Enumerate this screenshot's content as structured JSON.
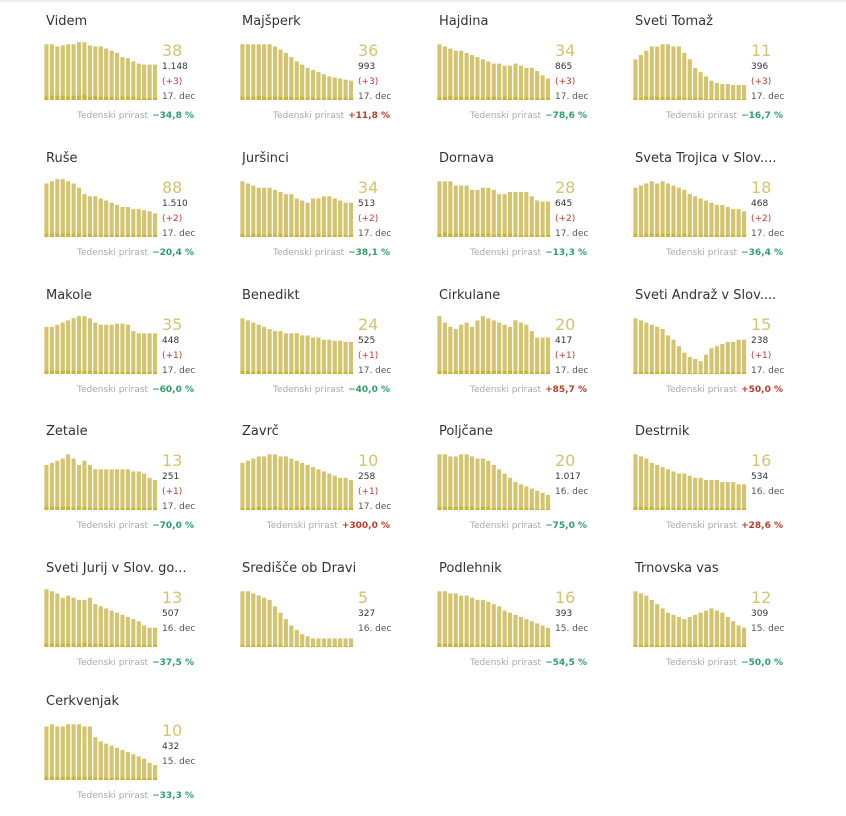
{
  "colors": {
    "bar": "#d4c470",
    "bar_low": "#c7b43a",
    "number": "#d4c470",
    "negative": "#2ea06a",
    "positive": "#c0392b"
  },
  "growth_label": "Tedenski prirast",
  "chart_data": [
    {
      "type": "bar",
      "title": "Videm",
      "active": "38",
      "total": "1.148",
      "delta": "(+3)",
      "date": "17. dec",
      "growth": "−34,8 %",
      "growth_sign": "neg",
      "values": [
        52,
        52,
        50,
        51,
        52,
        52,
        54,
        54,
        51,
        50,
        50,
        48,
        46,
        44,
        40,
        39,
        36,
        34,
        33,
        33,
        33
      ],
      "low": [
        3,
        4,
        4,
        4,
        3,
        4,
        4,
        5,
        3,
        4,
        3,
        3,
        3,
        2,
        3,
        3,
        3,
        2,
        2,
        2,
        2
      ]
    },
    {
      "type": "bar",
      "title": "Majšperk",
      "active": "36",
      "total": "993",
      "delta": "(+3)",
      "date": "17. dec",
      "growth": "+11,8 %",
      "growth_sign": "pos",
      "values": [
        52,
        52,
        52,
        52,
        52,
        52,
        50,
        47,
        44,
        40,
        36,
        33,
        30,
        28,
        26,
        24,
        22,
        21,
        20,
        19,
        18
      ],
      "low": [
        3,
        3,
        3,
        4,
        3,
        3,
        3,
        3,
        3,
        3,
        2,
        3,
        2,
        2,
        2,
        2,
        2,
        2,
        2,
        2,
        2
      ]
    },
    {
      "type": "bar",
      "title": "Hajdina",
      "active": "34",
      "total": "865",
      "delta": "(+3)",
      "date": "17. dec",
      "growth": "−78,6 %",
      "growth_sign": "neg",
      "values": [
        52,
        50,
        48,
        46,
        46,
        44,
        42,
        40,
        38,
        36,
        34,
        34,
        32,
        32,
        34,
        32,
        30,
        30,
        27,
        23,
        20
      ],
      "low": [
        3,
        3,
        4,
        3,
        3,
        3,
        3,
        3,
        2,
        3,
        3,
        2,
        3,
        2,
        3,
        2,
        2,
        2,
        2,
        2,
        2
      ]
    },
    {
      "type": "bar",
      "title": "Sveti Tomaž",
      "active": "11",
      "total": "396",
      "delta": "(+3)",
      "date": "17. dec",
      "growth": "−16,7 %",
      "growth_sign": "neg",
      "values": [
        38,
        42,
        46,
        50,
        50,
        52,
        52,
        50,
        50,
        44,
        38,
        30,
        26,
        22,
        18,
        16,
        15,
        15,
        14,
        14,
        14
      ],
      "low": [
        2,
        2,
        3,
        3,
        3,
        3,
        3,
        2,
        3,
        2,
        2,
        2,
        2,
        1,
        1,
        1,
        1,
        1,
        1,
        1,
        1
      ]
    },
    {
      "type": "bar",
      "title": "Ruše",
      "active": "88",
      "total": "1.510",
      "delta": "(+2)",
      "date": "17. dec",
      "growth": "−20,4 %",
      "growth_sign": "neg",
      "values": [
        50,
        52,
        54,
        54,
        52,
        50,
        46,
        40,
        38,
        38,
        36,
        34,
        32,
        30,
        28,
        28,
        26,
        26,
        25,
        24,
        22
      ],
      "low": [
        3,
        3,
        3,
        3,
        3,
        3,
        3,
        2,
        3,
        2,
        2,
        2,
        2,
        2,
        2,
        2,
        2,
        2,
        2,
        2,
        2
      ]
    },
    {
      "type": "bar",
      "title": "Juršinci",
      "active": "34",
      "total": "513",
      "delta": "(+2)",
      "date": "17. dec",
      "growth": "−38,1 %",
      "growth_sign": "neg",
      "values": [
        52,
        50,
        48,
        46,
        46,
        46,
        44,
        42,
        40,
        40,
        36,
        34,
        32,
        36,
        36,
        38,
        38,
        36,
        34,
        32,
        32
      ],
      "low": [
        3,
        2,
        3,
        3,
        2,
        3,
        2,
        3,
        2,
        2,
        2,
        2,
        2,
        2,
        3,
        2,
        2,
        2,
        2,
        2,
        2
      ]
    },
    {
      "type": "bar",
      "title": "Dornava",
      "active": "28",
      "total": "645",
      "delta": "(+2)",
      "date": "17. dec",
      "growth": "−13,3 %",
      "growth_sign": "neg",
      "values": [
        52,
        52,
        52,
        48,
        48,
        48,
        44,
        44,
        46,
        46,
        44,
        40,
        40,
        42,
        42,
        42,
        42,
        38,
        34,
        33,
        33
      ],
      "low": [
        3,
        4,
        3,
        3,
        3,
        3,
        3,
        3,
        3,
        3,
        2,
        3,
        3,
        3,
        2,
        2,
        2,
        2,
        2,
        2,
        2
      ]
    },
    {
      "type": "bar",
      "title": "Sveta Trojica v Slov....",
      "active": "18",
      "total": "468",
      "delta": "(+2)",
      "date": "17. dec",
      "growth": "−36,4 %",
      "growth_sign": "neg",
      "values": [
        46,
        48,
        50,
        52,
        50,
        52,
        50,
        48,
        46,
        44,
        40,
        38,
        36,
        34,
        32,
        30,
        30,
        28,
        26,
        26,
        24
      ],
      "low": [
        3,
        2,
        3,
        3,
        3,
        3,
        3,
        3,
        2,
        3,
        2,
        2,
        2,
        2,
        2,
        2,
        2,
        2,
        2,
        2,
        2
      ]
    },
    {
      "type": "bar",
      "title": "Makole",
      "active": "35",
      "total": "448",
      "delta": "(+1)",
      "date": "17. dec",
      "growth": "−60,0 %",
      "growth_sign": "neg",
      "values": [
        44,
        44,
        46,
        48,
        50,
        52,
        54,
        54,
        52,
        48,
        46,
        46,
        46,
        47,
        47,
        46,
        40,
        38,
        38,
        38,
        38
      ],
      "low": [
        3,
        3,
        3,
        3,
        3,
        3,
        3,
        3,
        3,
        3,
        2,
        2,
        2,
        2,
        2,
        2,
        2,
        2,
        2,
        2,
        2
      ]
    },
    {
      "type": "bar",
      "title": "Benedikt",
      "active": "24",
      "total": "525",
      "delta": "(+1)",
      "date": "17. dec",
      "growth": "−40,0 %",
      "growth_sign": "neg",
      "values": [
        52,
        50,
        48,
        46,
        44,
        42,
        40,
        40,
        38,
        38,
        38,
        36,
        36,
        34,
        34,
        32,
        32,
        31,
        31,
        30,
        30
      ],
      "low": [
        3,
        3,
        2,
        3,
        2,
        3,
        2,
        2,
        2,
        2,
        3,
        2,
        2,
        2,
        2,
        2,
        2,
        2,
        2,
        2,
        2
      ]
    },
    {
      "type": "bar",
      "title": "Cirkulane",
      "active": "20",
      "total": "417",
      "delta": "(+1)",
      "date": "17. dec",
      "growth": "+85,7 %",
      "growth_sign": "pos",
      "values": [
        54,
        48,
        44,
        42,
        46,
        48,
        44,
        50,
        54,
        52,
        50,
        48,
        46,
        44,
        50,
        48,
        46,
        40,
        34,
        34,
        34
      ],
      "low": [
        3,
        3,
        2,
        3,
        3,
        3,
        3,
        3,
        3,
        3,
        3,
        3,
        3,
        3,
        3,
        3,
        3,
        2,
        2,
        2,
        2
      ]
    },
    {
      "type": "bar",
      "title": "Sveti Andraž v Slov....",
      "active": "15",
      "total": "238",
      "delta": "(+1)",
      "date": "17. dec",
      "growth": "+50,0 %",
      "growth_sign": "pos",
      "values": [
        52,
        50,
        48,
        46,
        44,
        42,
        36,
        32,
        26,
        20,
        16,
        14,
        12,
        18,
        24,
        26,
        28,
        30,
        30,
        32,
        32
      ],
      "low": [
        2,
        2,
        2,
        2,
        2,
        2,
        2,
        2,
        1,
        1,
        1,
        1,
        1,
        1,
        1,
        1,
        2,
        2,
        2,
        2,
        2
      ]
    },
    {
      "type": "bar",
      "title": "Žetale",
      "active": "13",
      "total": "251",
      "delta": "(+1)",
      "date": "17. dec",
      "growth": "−70,0 %",
      "growth_sign": "neg",
      "values": [
        42,
        44,
        46,
        48,
        52,
        48,
        42,
        46,
        42,
        38,
        38,
        38,
        38,
        38,
        38,
        38,
        36,
        36,
        34,
        30,
        28
      ],
      "low": [
        3,
        3,
        3,
        3,
        3,
        2,
        3,
        3,
        2,
        2,
        2,
        2,
        2,
        2,
        2,
        2,
        2,
        2,
        2,
        2,
        2
      ]
    },
    {
      "type": "bar",
      "title": "Zavrč",
      "active": "10",
      "total": "258",
      "delta": "(+1)",
      "date": "17. dec",
      "growth": "+300,0 %",
      "growth_sign": "pos",
      "values": [
        44,
        46,
        48,
        50,
        50,
        52,
        52,
        50,
        50,
        48,
        46,
        44,
        42,
        40,
        38,
        36,
        34,
        32,
        30,
        30,
        28
      ],
      "low": [
        2,
        2,
        2,
        3,
        2,
        2,
        3,
        2,
        2,
        2,
        3,
        2,
        3,
        2,
        2,
        2,
        2,
        2,
        2,
        2,
        2
      ]
    },
    {
      "type": "bar",
      "title": "Poljčane",
      "active": "20",
      "total": "1.017",
      "delta": "",
      "date": "16. dec",
      "growth": "−75,0 %",
      "growth_sign": "neg",
      "values": [
        52,
        52,
        50,
        50,
        52,
        52,
        50,
        48,
        48,
        46,
        42,
        38,
        34,
        30,
        26,
        24,
        22,
        20,
        18,
        16,
        14
      ],
      "low": [
        3,
        3,
        3,
        3,
        3,
        3,
        3,
        2,
        3,
        3,
        2,
        2,
        2,
        2,
        2,
        2,
        2,
        2,
        1,
        1,
        1
      ]
    },
    {
      "type": "bar",
      "title": "Destrnik",
      "active": "16",
      "total": "534",
      "delta": "",
      "date": "16. dec",
      "growth": "+28,6 %",
      "growth_sign": "pos",
      "values": [
        52,
        50,
        48,
        44,
        42,
        40,
        38,
        36,
        34,
        34,
        32,
        30,
        30,
        28,
        28,
        28,
        26,
        26,
        26,
        24,
        24
      ],
      "low": [
        3,
        3,
        3,
        3,
        2,
        3,
        2,
        2,
        2,
        2,
        2,
        2,
        2,
        2,
        2,
        2,
        2,
        2,
        2,
        2,
        2
      ]
    },
    {
      "type": "bar",
      "title": "Sveti Jurij v Slov. go...",
      "active": "13",
      "total": "507",
      "delta": "",
      "date": "16. dec",
      "growth": "−37,5 %",
      "growth_sign": "neg",
      "values": [
        54,
        52,
        50,
        46,
        48,
        46,
        44,
        44,
        46,
        40,
        38,
        36,
        34,
        32,
        30,
        28,
        26,
        24,
        20,
        18,
        18
      ],
      "low": [
        3,
        3,
        3,
        3,
        3,
        3,
        3,
        4,
        3,
        3,
        3,
        2,
        2,
        2,
        2,
        2,
        2,
        2,
        2,
        2,
        2
      ]
    },
    {
      "type": "bar",
      "title": "Središče ob Dravi",
      "active": "5",
      "total": "327",
      "delta": "",
      "date": "16. dec",
      "growth": "",
      "growth_sign": "neg",
      "values": [
        52,
        52,
        50,
        48,
        46,
        44,
        38,
        32,
        26,
        20,
        16,
        12,
        10,
        8,
        8,
        8,
        8,
        8,
        8,
        8,
        8
      ],
      "low": [
        2,
        2,
        2,
        2,
        2,
        2,
        2,
        2,
        1,
        1,
        1,
        1,
        1,
        1,
        1,
        1,
        1,
        1,
        1,
        1,
        1
      ]
    },
    {
      "type": "bar",
      "title": "Podlehnik",
      "active": "16",
      "total": "393",
      "delta": "",
      "date": "15. dec",
      "growth": "−54,5 %",
      "growth_sign": "neg",
      "values": [
        52,
        52,
        50,
        50,
        48,
        48,
        46,
        44,
        44,
        42,
        40,
        38,
        34,
        32,
        30,
        28,
        26,
        24,
        22,
        20,
        18
      ],
      "low": [
        3,
        3,
        3,
        3,
        3,
        3,
        2,
        2,
        2,
        2,
        2,
        2,
        2,
        2,
        2,
        2,
        2,
        2,
        2,
        2,
        2
      ]
    },
    {
      "type": "bar",
      "title": "Trnovska vas",
      "active": "12",
      "total": "309",
      "delta": "",
      "date": "15. dec",
      "growth": "−50,0 %",
      "growth_sign": "neg",
      "values": [
        52,
        50,
        48,
        44,
        40,
        36,
        32,
        30,
        28,
        26,
        28,
        30,
        32,
        34,
        36,
        34,
        32,
        28,
        24,
        20,
        18
      ],
      "low": [
        2,
        2,
        2,
        2,
        2,
        2,
        2,
        2,
        2,
        2,
        2,
        2,
        2,
        2,
        2,
        2,
        2,
        2,
        2,
        2,
        2
      ]
    },
    {
      "type": "bar",
      "title": "Cerkvenjak",
      "active": "10",
      "total": "432",
      "delta": "",
      "date": "15. dec",
      "growth": "−33,3 %",
      "growth_sign": "neg",
      "values": [
        50,
        52,
        50,
        50,
        52,
        52,
        52,
        50,
        50,
        40,
        36,
        34,
        32,
        30,
        28,
        26,
        24,
        22,
        20,
        16,
        14
      ],
      "low": [
        3,
        3,
        3,
        3,
        3,
        3,
        3,
        3,
        3,
        2,
        2,
        2,
        2,
        2,
        2,
        2,
        2,
        2,
        2,
        2,
        2
      ]
    }
  ]
}
